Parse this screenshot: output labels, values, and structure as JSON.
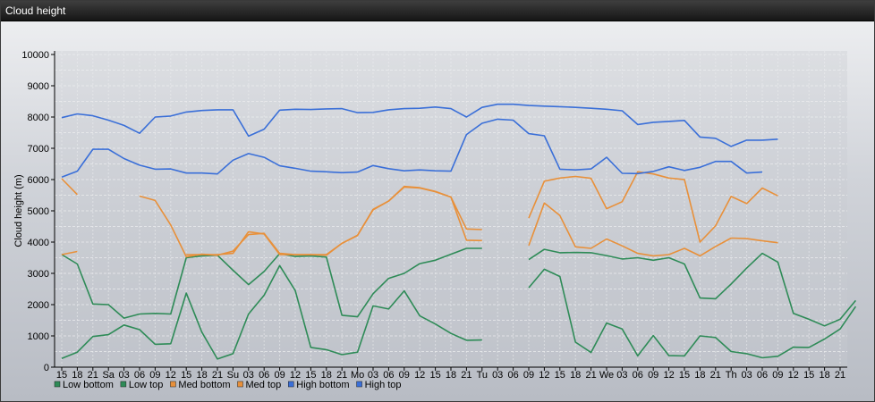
{
  "window": {
    "title": "Cloud height"
  },
  "chart_data": {
    "type": "line",
    "ylabel": "Cloud height (m)",
    "ylim": [
      0,
      10000
    ],
    "yticks": [
      0,
      1000,
      2000,
      3000,
      4000,
      5000,
      6000,
      7000,
      8000,
      9000,
      10000
    ],
    "xticks": [
      "15",
      "18",
      "21",
      "Sa",
      "03",
      "06",
      "09",
      "12",
      "15",
      "18",
      "21",
      "Su",
      "03",
      "06",
      "09",
      "12",
      "15",
      "18",
      "21",
      "Mo",
      "03",
      "06",
      "09",
      "12",
      "15",
      "18",
      "21",
      "Tu",
      "03",
      "06",
      "09",
      "12",
      "15",
      "18",
      "21",
      "We",
      "03",
      "06",
      "09",
      "12",
      "15",
      "18",
      "21",
      "Th",
      "03",
      "06",
      "09",
      "12",
      "15",
      "18",
      "21"
    ],
    "grid": true,
    "legend_position": "bottom-left",
    "series": [
      {
        "name": "Low bottom",
        "color": "#2e8b57",
        "values": [
          280,
          480,
          980,
          1040,
          1350,
          1200,
          730,
          750,
          2370,
          1120,
          260,
          430,
          1700,
          2300,
          3250,
          2450,
          630,
          560,
          400,
          480,
          1960,
          1860,
          2440,
          1640,
          1380,
          1080,
          860,
          870,
          null,
          null,
          2540,
          3130,
          2900,
          800,
          470,
          1410,
          1220,
          360,
          1010,
          370,
          360,
          1000,
          950,
          500,
          430,
          300,
          350,
          640,
          630,
          900,
          1220,
          1940
        ]
      },
      {
        "name": "Low top",
        "color": "#2e8b57",
        "values": [
          3600,
          3300,
          2020,
          2000,
          1570,
          1700,
          1720,
          1700,
          3500,
          3560,
          3580,
          3100,
          2640,
          3060,
          3630,
          3540,
          3560,
          3520,
          1660,
          1610,
          2350,
          2840,
          3000,
          3310,
          3420,
          3610,
          3800,
          3800,
          null,
          null,
          3440,
          3770,
          3660,
          3670,
          3660,
          3570,
          3460,
          3500,
          3420,
          3500,
          3300,
          2210,
          2190,
          2660,
          3170,
          3640,
          3360,
          1720,
          1530,
          1320,
          1530,
          2130
        ]
      },
      {
        "name": "Med bottom",
        "color": "#e8903a",
        "values": [
          3600,
          3700,
          null,
          null,
          null,
          null,
          null,
          null,
          3600,
          3600,
          3600,
          3640,
          4330,
          4260,
          3600,
          3600,
          3600,
          3600,
          3960,
          4220,
          5030,
          5310,
          5760,
          5730,
          5610,
          5440,
          4060,
          4050,
          null,
          null,
          3890,
          5250,
          4850,
          3850,
          3800,
          4100,
          3880,
          3640,
          3560,
          3600,
          3800,
          3560,
          3860,
          4130,
          4110,
          4040,
          3980,
          null,
          null,
          null,
          null,
          null
        ]
      },
      {
        "name": "Med top",
        "color": "#e8903a",
        "values": [
          6030,
          5520,
          null,
          null,
          null,
          5470,
          5330,
          4550,
          3530,
          3610,
          3580,
          3710,
          4240,
          4280,
          3640,
          3600,
          3600,
          3580,
          3960,
          4210,
          5050,
          5310,
          5780,
          5740,
          5620,
          5440,
          4420,
          4400,
          null,
          null,
          4770,
          5950,
          6050,
          6100,
          6040,
          5070,
          5290,
          6250,
          6180,
          6050,
          6000,
          4000,
          4520,
          5460,
          5230,
          5730,
          5480,
          null,
          null,
          null,
          null,
          null
        ]
      },
      {
        "name": "High bottom",
        "color": "#3a6fd8",
        "values": [
          6080,
          6270,
          6970,
          6970,
          6670,
          6460,
          6330,
          6340,
          6210,
          6210,
          6180,
          6620,
          6830,
          6710,
          6440,
          6360,
          6270,
          6250,
          6220,
          6240,
          6450,
          6350,
          6280,
          6310,
          6280,
          6270,
          7440,
          7800,
          7930,
          7900,
          7470,
          7400,
          6330,
          6310,
          6340,
          6710,
          6200,
          6190,
          6260,
          6410,
          6290,
          6390,
          6580,
          6580,
          6210,
          6240,
          null,
          null,
          null,
          null,
          null,
          null
        ]
      },
      {
        "name": "High top",
        "color": "#3a6fd8",
        "values": [
          7980,
          8100,
          8040,
          7900,
          7730,
          7480,
          8000,
          8030,
          8160,
          8210,
          8230,
          8230,
          7390,
          7610,
          8220,
          8250,
          8240,
          8260,
          8270,
          8140,
          8150,
          8230,
          8270,
          8280,
          8320,
          8270,
          8000,
          8310,
          8410,
          8410,
          8370,
          8350,
          8330,
          8310,
          8280,
          8250,
          8200,
          7760,
          7830,
          7860,
          7890,
          7360,
          7320,
          7060,
          7260,
          7260,
          7290,
          null,
          null,
          null,
          null,
          null
        ]
      }
    ]
  }
}
